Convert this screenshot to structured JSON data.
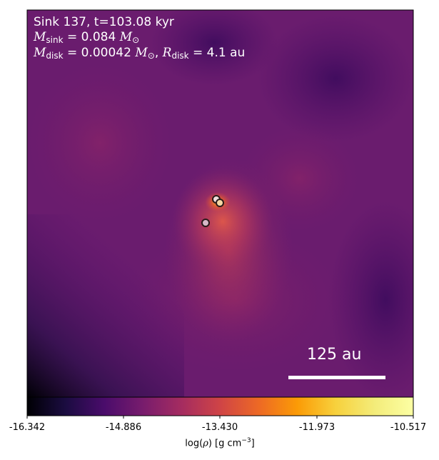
{
  "annotation": {
    "line1": "Sink 137, t=103.08 kyr",
    "m_sink_sym": "M",
    "m_sink_sub": "sink",
    "m_sink_value": " = 0.084 ",
    "m_disk_sym": "M",
    "m_disk_sub": "disk",
    "m_disk_value": " = 0.00042 ",
    "r_disk_sym": "R",
    "r_disk_sub": "disk",
    "r_disk_value": " = 4.1 au",
    "msun_symbol": "M",
    "msun_sub": "⊙"
  },
  "scale_bar": {
    "label": "125 au"
  },
  "colorbar": {
    "colormap": "inferno",
    "ticks": [
      "-16.342",
      "-14.886",
      "-13.430",
      "-11.973",
      "-10.517"
    ],
    "label_prefix": "log(",
    "label_rho": "ρ",
    "label_suffix": ") [g cm",
    "label_exp": "−3",
    "label_end": "]"
  },
  "sink_markers": [
    {
      "name": "sink-a",
      "fill": "#f0dede"
    },
    {
      "name": "sink-b",
      "fill": "#f6d8a4"
    },
    {
      "name": "sink-c",
      "fill": "#d8b8c8"
    }
  ],
  "colors": {
    "background_low": "#000004",
    "background_mid": "#6a1c6e",
    "background_high": "#d8484c",
    "peak": "#f7b21f"
  }
}
